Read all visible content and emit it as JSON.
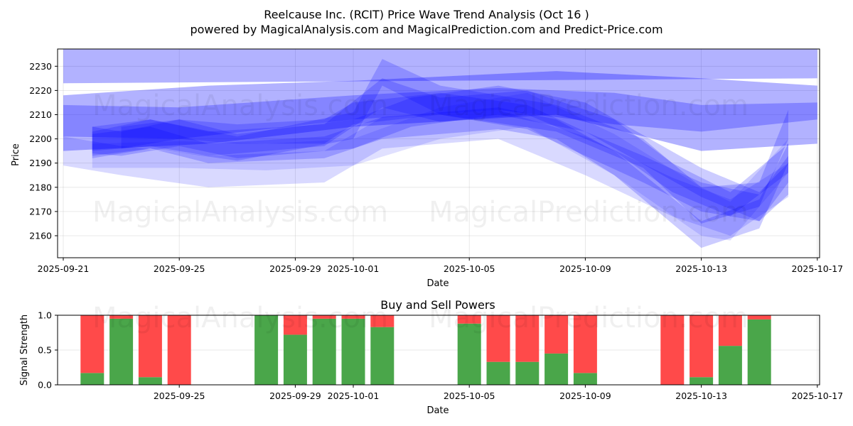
{
  "title_line1": "Reelcause Inc. (RCIT) Price Wave Trend Analysis (Oct 16 )",
  "title_line2": "powered by MagicalAnalysis.com and MagicalPrediction.com and Predict-Price.com",
  "watermarks": {
    "left": "MagicalAnalysis.com",
    "right": "MagicalPrediction.com"
  },
  "colors": {
    "band": "#0000ff",
    "buy": "#4aa64a",
    "sell": "#ff4a4a"
  },
  "chart_data": [
    {
      "type": "area",
      "title": "",
      "xlabel": "Date",
      "ylabel": "Price",
      "x_ticks": [
        "2025-09-21",
        "2025-09-25",
        "2025-09-29",
        "2025-10-01",
        "2025-10-05",
        "2025-10-09",
        "2025-10-13",
        "2025-10-17"
      ],
      "y_ticks": [
        2160,
        2170,
        2180,
        2190,
        2200,
        2210,
        2220,
        2230
      ],
      "xlim": [
        "2025-09-20",
        "2025-10-17"
      ],
      "ylim": [
        2151,
        2238
      ],
      "grid": true,
      "series": [
        {
          "x": [
            "2025-09-21",
            "2025-10-17"
          ],
          "lower": [
            2223,
            2225
          ],
          "upper": [
            2238,
            2238
          ],
          "opacity": 0.3
        },
        {
          "x": [
            "2025-09-21",
            "2025-09-26",
            "2025-10-01",
            "2025-10-08",
            "2025-10-13",
            "2025-10-17"
          ],
          "lower": [
            2195,
            2198,
            2205,
            2210,
            2195,
            2198
          ],
          "upper": [
            2218,
            2222,
            2224,
            2228,
            2225,
            2222
          ],
          "opacity": 0.3
        },
        {
          "x": [
            "2025-09-21",
            "2025-09-25",
            "2025-10-01",
            "2025-10-06",
            "2025-10-10",
            "2025-10-13",
            "2025-10-17"
          ],
          "lower": [
            2201,
            2200,
            2208,
            2212,
            2206,
            2203,
            2208
          ],
          "upper": [
            2214,
            2213,
            2218,
            2221,
            2219,
            2214,
            2215
          ],
          "opacity": 0.25
        },
        {
          "x": [
            "2025-09-21",
            "2025-09-23",
            "2025-09-26",
            "2025-09-30",
            "2025-10-02",
            "2025-10-06",
            "2025-10-09",
            "2025-10-12",
            "2025-10-14",
            "2025-10-16"
          ],
          "lower": [
            2189,
            2185,
            2180,
            2182,
            2196,
            2200,
            2185,
            2168,
            2160,
            2176
          ],
          "upper": [
            2201,
            2197,
            2193,
            2195,
            2209,
            2212,
            2201,
            2184,
            2175,
            2190
          ],
          "opacity": 0.15
        },
        {
          "x": [
            "2025-09-22",
            "2025-09-24",
            "2025-09-26",
            "2025-09-30",
            "2025-10-02",
            "2025-10-06",
            "2025-10-08",
            "2025-10-10",
            "2025-10-13",
            "2025-10-15",
            "2025-10-16"
          ],
          "lower": [
            2193,
            2196,
            2190,
            2192,
            2200,
            2204,
            2200,
            2185,
            2155,
            2163,
            2190
          ],
          "upper": [
            2202,
            2205,
            2198,
            2201,
            2209,
            2213,
            2208,
            2195,
            2166,
            2175,
            2198
          ],
          "opacity": 0.2
        },
        {
          "x": [
            "2025-09-22",
            "2025-09-23",
            "2025-09-25",
            "2025-09-27",
            "2025-10-01",
            "2025-10-03",
            "2025-10-06",
            "2025-10-09",
            "2025-10-13",
            "2025-10-15",
            "2025-10-16"
          ],
          "lower": [
            2194,
            2193,
            2197,
            2192,
            2196,
            2205,
            2210,
            2203,
            2176,
            2166,
            2177
          ],
          "upper": [
            2205,
            2203,
            2208,
            2202,
            2208,
            2217,
            2222,
            2215,
            2188,
            2178,
            2190
          ],
          "opacity": 0.2
        },
        {
          "x": [
            "2025-09-22",
            "2025-09-24",
            "2025-09-26",
            "2025-09-30",
            "2025-10-02",
            "2025-10-04",
            "2025-10-07",
            "2025-10-10",
            "2025-10-12",
            "2025-10-14",
            "2025-10-16"
          ],
          "lower": [
            2195,
            2197,
            2193,
            2197,
            2213,
            2207,
            2210,
            2195,
            2178,
            2168,
            2186
          ],
          "upper": [
            2205,
            2208,
            2203,
            2206,
            2225,
            2217,
            2220,
            2208,
            2190,
            2178,
            2198
          ],
          "opacity": 0.2
        },
        {
          "x": [
            "2025-09-22",
            "2025-09-24",
            "2025-09-27",
            "2025-10-01",
            "2025-10-02",
            "2025-10-04",
            "2025-10-08",
            "2025-10-11",
            "2025-10-13",
            "2025-10-15",
            "2025-10-16"
          ],
          "lower": [
            2192,
            2196,
            2191,
            2200,
            2222,
            2210,
            2203,
            2188,
            2165,
            2172,
            2200
          ],
          "upper": [
            2203,
            2208,
            2201,
            2211,
            2233,
            2222,
            2214,
            2200,
            2180,
            2182,
            2212
          ],
          "opacity": 0.2
        },
        {
          "x": [
            "2025-09-22",
            "2025-09-25",
            "2025-09-28",
            "2025-10-01",
            "2025-10-04",
            "2025-10-07",
            "2025-10-10",
            "2025-10-13",
            "2025-10-14",
            "2025-10-16"
          ],
          "lower": [
            2188,
            2188,
            2187,
            2189,
            2200,
            2205,
            2185,
            2160,
            2158,
            2186
          ],
          "upper": [
            2198,
            2199,
            2198,
            2200,
            2213,
            2219,
            2202,
            2180,
            2174,
            2200
          ],
          "opacity": 0.12
        },
        {
          "x": [
            "2025-09-23",
            "2025-09-25",
            "2025-09-27",
            "2025-09-30",
            "2025-10-01",
            "2025-10-04",
            "2025-10-07",
            "2025-10-09",
            "2025-10-11",
            "2025-10-13",
            "2025-10-15",
            "2025-10-16"
          ],
          "lower": [
            2196,
            2200,
            2198,
            2198,
            2206,
            2210,
            2204,
            2193,
            2182,
            2170,
            2166,
            2182
          ],
          "upper": [
            2205,
            2208,
            2206,
            2208,
            2215,
            2219,
            2214,
            2203,
            2193,
            2182,
            2177,
            2193
          ],
          "opacity": 0.2
        }
      ]
    },
    {
      "type": "bar",
      "title": "Buy and Sell Powers",
      "xlabel": "Date",
      "ylabel": "Signal Strength",
      "x_ticks": [
        "2025-09-25",
        "2025-09-29",
        "2025-10-01",
        "2025-10-05",
        "2025-10-09",
        "2025-10-13",
        "2025-10-17"
      ],
      "y_ticks": [
        "0.0",
        "0.5",
        "1.0"
      ],
      "ylim": [
        0,
        1
      ],
      "grid": true,
      "categories": [
        "2025-09-22",
        "2025-09-23",
        "2025-09-24",
        "2025-09-25",
        "2025-09-28",
        "2025-09-29",
        "2025-09-30",
        "2025-10-01",
        "2025-10-02",
        "2025-10-05",
        "2025-10-06",
        "2025-10-07",
        "2025-10-08",
        "2025-10-09",
        "2025-10-12",
        "2025-10-13",
        "2025-10-14",
        "2025-10-15"
      ],
      "series": [
        {
          "values": [
            0.17,
            0.95,
            0.11,
            0.0,
            1.0,
            0.72,
            0.95,
            0.95,
            0.83,
            0.88,
            0.33,
            0.33,
            0.45,
            0.17,
            0.0,
            0.11,
            0.56,
            0.94
          ]
        },
        {
          "values": [
            0.83,
            0.05,
            0.89,
            1.0,
            0.0,
            0.28,
            0.05,
            0.05,
            0.17,
            0.12,
            0.67,
            0.67,
            0.55,
            0.83,
            1.0,
            0.89,
            0.44,
            0.06
          ]
        }
      ]
    }
  ]
}
